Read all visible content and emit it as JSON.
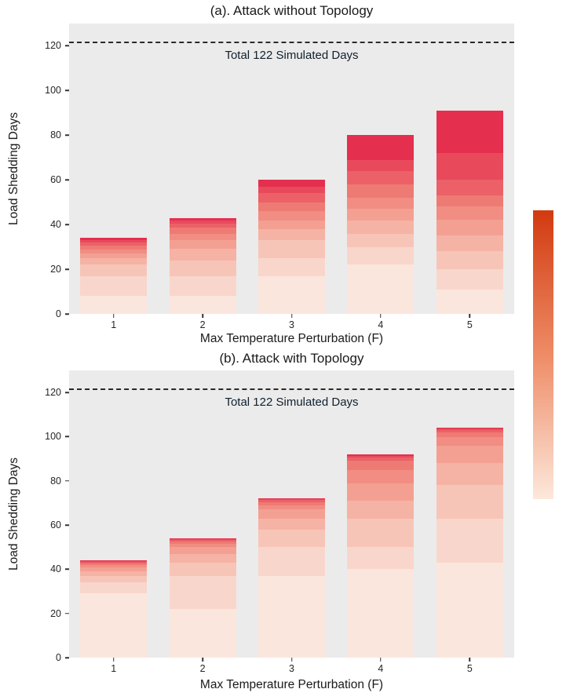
{
  "colors": {
    "plot_background": "#ebebeb",
    "reference_line": "#2a2a2a",
    "bar_palette": [
      "#fbe6de",
      "#f9d6cb",
      "#f7c5b8",
      "#f5b3a5",
      "#f3a093",
      "#f18d82",
      "#ee7a74",
      "#eb6167",
      "#e84a5c",
      "#e42f4e"
    ],
    "colorbar_colors": [
      "#d23a10",
      "#ef8f6a",
      "#fce8dc"
    ]
  },
  "chart_data": [
    {
      "type": "bar",
      "stacked": true,
      "title": "(a). Attack without Topology",
      "xlabel": "Max Temperature Perturbation (F)",
      "ylabel": "Load Shedding Days",
      "annotation": "Total 122 Simulated Days",
      "reference_line": 122,
      "categories": [
        "1",
        "2",
        "3",
        "4",
        "5"
      ],
      "totals": [
        34,
        43,
        60,
        80,
        91
      ],
      "segments": [
        [
          8,
          9,
          5,
          3,
          2,
          2,
          1.5,
          1.5,
          1,
          1
        ],
        [
          8,
          9,
          7,
          5,
          4,
          3,
          2.5,
          2,
          1.5,
          1
        ],
        [
          17,
          8,
          8,
          5,
          4,
          4,
          4,
          4,
          3,
          3
        ],
        [
          22,
          8,
          6,
          6,
          5,
          5,
          6,
          6,
          5,
          11
        ],
        [
          11,
          9,
          8,
          7,
          7,
          6,
          5,
          7,
          12,
          19
        ]
      ],
      "ylim": [
        0,
        130
      ],
      "yticks": [
        0,
        20,
        40,
        60,
        80,
        100,
        120
      ],
      "grid": false,
      "legend": "colorbar-right"
    },
    {
      "type": "bar",
      "stacked": true,
      "title": "(b). Attack with Topology",
      "xlabel": "Max Temperature Perturbation (F)",
      "ylabel": "Load Shedding Days",
      "annotation": "Total 122 Simulated Days",
      "reference_line": 122,
      "categories": [
        "1",
        "2",
        "3",
        "4",
        "5"
      ],
      "totals": [
        44,
        54,
        72,
        92,
        104
      ],
      "segments": [
        [
          29,
          5,
          3,
          2,
          2,
          1,
          0.8,
          0.6,
          0.4,
          0.2
        ],
        [
          22,
          15,
          6,
          4,
          3,
          1.5,
          1,
          0.8,
          0.5,
          0.2
        ],
        [
          37,
          13,
          8,
          5,
          4,
          2,
          1.5,
          0.8,
          0.5,
          0.2
        ],
        [
          40,
          10,
          13,
          8,
          8,
          6,
          4,
          1.5,
          0.8,
          0.7
        ],
        [
          43,
          20,
          15,
          10,
          8,
          4,
          2,
          1,
          0.6,
          0.4
        ]
      ],
      "ylim": [
        0,
        130
      ],
      "yticks": [
        0,
        20,
        40,
        60,
        80,
        100,
        120
      ],
      "grid": false,
      "legend": "colorbar-right"
    }
  ]
}
